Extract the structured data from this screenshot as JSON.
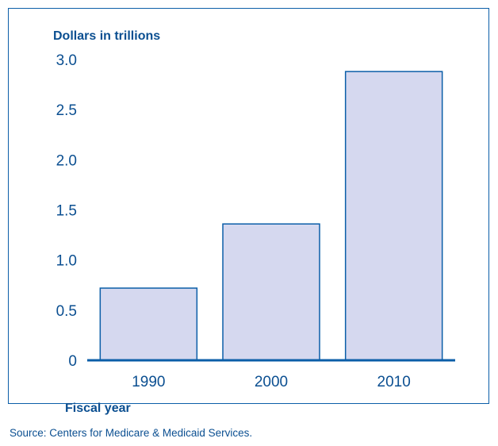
{
  "chart_data": {
    "type": "bar",
    "title": "",
    "ylabel": "Dollars in trillions",
    "xlabel": "Fiscal year",
    "categories": [
      "1990",
      "2000",
      "2010"
    ],
    "values": [
      0.72,
      1.36,
      2.88
    ],
    "ylim": [
      0,
      3.0
    ],
    "yticks": [
      "0",
      "0.5",
      "1.0",
      "1.5",
      "2.0",
      "2.5",
      "3.0"
    ],
    "grid": false,
    "colors": {
      "bar_fill": "#d5d8ef",
      "bar_stroke": "#0b5ea8",
      "text": "#0b4f91",
      "axis": "#0b5ea8"
    }
  },
  "source": "Source: Centers for Medicare & Medicaid Services."
}
